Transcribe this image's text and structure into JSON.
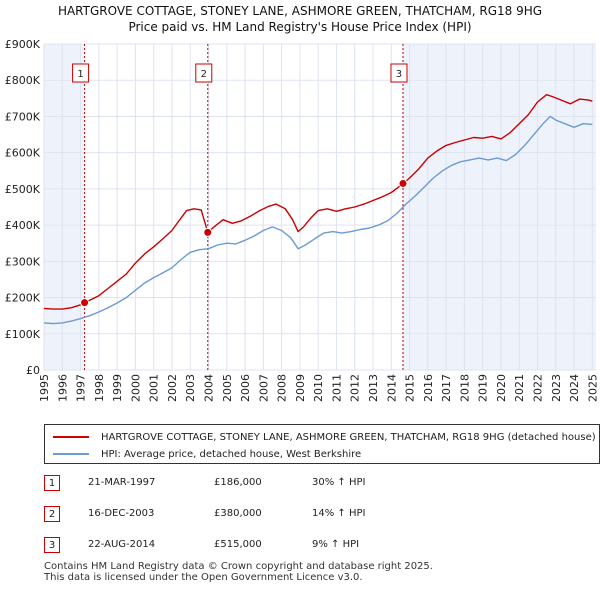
{
  "chart_data": {
    "type": "line",
    "title": "HARTGROVE COTTAGE, STONEY LANE, ASHMORE GREEN, THATCHAM, RG18 9HG",
    "subtitle": "Price paid vs. HM Land Registry's House Price Index (HPI)",
    "y_ticks": [
      "£0",
      "£100K",
      "£200K",
      "£300K",
      "£400K",
      "£500K",
      "£600K",
      "£700K",
      "£800K",
      "£900K"
    ],
    "ylim": [
      0,
      900000
    ],
    "x_ticks": [
      "1995",
      "1996",
      "1997",
      "1998",
      "1999",
      "2000",
      "2001",
      "2002",
      "2003",
      "2004",
      "2005",
      "2006",
      "2007",
      "2008",
      "2009",
      "2010",
      "2011",
      "2012",
      "2013",
      "2014",
      "2015",
      "2016",
      "2017",
      "2018",
      "2019",
      "2020",
      "2021",
      "2022",
      "2023",
      "2024",
      "2025"
    ],
    "xlim": [
      1995.0,
      2025.2
    ],
    "series": [
      {
        "name": "HARTGROVE COTTAGE, STONEY LANE, ASHMORE GREEN, THATCHAM, RG18 9HG (detached house)",
        "color": "#cc0000",
        "points": [
          [
            1995.0,
            170000
          ],
          [
            1995.5,
            168000
          ],
          [
            1996.0,
            168000
          ],
          [
            1996.5,
            172000
          ],
          [
            1997.0,
            180000
          ],
          [
            1997.22,
            186000
          ],
          [
            1997.6,
            195000
          ],
          [
            1998.0,
            205000
          ],
          [
            1998.5,
            225000
          ],
          [
            1999.0,
            245000
          ],
          [
            1999.5,
            265000
          ],
          [
            2000.0,
            295000
          ],
          [
            2000.5,
            320000
          ],
          [
            2001.0,
            340000
          ],
          [
            2001.5,
            362000
          ],
          [
            2002.0,
            385000
          ],
          [
            2002.5,
            420000
          ],
          [
            2002.8,
            440000
          ],
          [
            2003.2,
            445000
          ],
          [
            2003.6,
            442000
          ],
          [
            2003.96,
            380000
          ],
          [
            2004.3,
            395000
          ],
          [
            2004.8,
            415000
          ],
          [
            2005.3,
            405000
          ],
          [
            2005.8,
            412000
          ],
          [
            2006.3,
            425000
          ],
          [
            2006.8,
            440000
          ],
          [
            2007.3,
            452000
          ],
          [
            2007.7,
            458000
          ],
          [
            2008.2,
            445000
          ],
          [
            2008.6,
            415000
          ],
          [
            2008.9,
            382000
          ],
          [
            2009.2,
            395000
          ],
          [
            2009.6,
            420000
          ],
          [
            2010.0,
            440000
          ],
          [
            2010.5,
            445000
          ],
          [
            2011.0,
            438000
          ],
          [
            2011.5,
            445000
          ],
          [
            2012.0,
            450000
          ],
          [
            2012.5,
            458000
          ],
          [
            2013.0,
            468000
          ],
          [
            2013.5,
            478000
          ],
          [
            2014.0,
            490000
          ],
          [
            2014.4,
            505000
          ],
          [
            2014.64,
            515000
          ],
          [
            2015.0,
            530000
          ],
          [
            2015.5,
            555000
          ],
          [
            2016.0,
            585000
          ],
          [
            2016.5,
            605000
          ],
          [
            2017.0,
            620000
          ],
          [
            2017.5,
            628000
          ],
          [
            2018.0,
            635000
          ],
          [
            2018.5,
            642000
          ],
          [
            2019.0,
            640000
          ],
          [
            2019.5,
            645000
          ],
          [
            2020.0,
            638000
          ],
          [
            2020.5,
            655000
          ],
          [
            2021.0,
            680000
          ],
          [
            2021.5,
            705000
          ],
          [
            2022.0,
            740000
          ],
          [
            2022.5,
            760000
          ],
          [
            2022.8,
            755000
          ],
          [
            2023.3,
            745000
          ],
          [
            2023.8,
            735000
          ],
          [
            2024.3,
            748000
          ],
          [
            2024.8,
            745000
          ],
          [
            2025.0,
            742000
          ]
        ]
      },
      {
        "name": "HPI: Average price, detached house, West Berkshire",
        "color": "#6b9bd2",
        "points": [
          [
            1995.0,
            130000
          ],
          [
            1995.5,
            128000
          ],
          [
            1996.0,
            130000
          ],
          [
            1996.5,
            135000
          ],
          [
            1997.0,
            142000
          ],
          [
            1997.5,
            150000
          ],
          [
            1998.0,
            160000
          ],
          [
            1998.5,
            172000
          ],
          [
            1999.0,
            185000
          ],
          [
            1999.5,
            200000
          ],
          [
            2000.0,
            220000
          ],
          [
            2000.5,
            240000
          ],
          [
            2001.0,
            255000
          ],
          [
            2001.5,
            268000
          ],
          [
            2002.0,
            282000
          ],
          [
            2002.5,
            305000
          ],
          [
            2003.0,
            325000
          ],
          [
            2003.5,
            332000
          ],
          [
            2004.0,
            335000
          ],
          [
            2004.5,
            345000
          ],
          [
            2005.0,
            350000
          ],
          [
            2005.5,
            348000
          ],
          [
            2006.0,
            358000
          ],
          [
            2006.5,
            370000
          ],
          [
            2007.0,
            385000
          ],
          [
            2007.5,
            395000
          ],
          [
            2008.0,
            385000
          ],
          [
            2008.5,
            365000
          ],
          [
            2008.9,
            335000
          ],
          [
            2009.3,
            345000
          ],
          [
            2009.8,
            362000
          ],
          [
            2010.3,
            378000
          ],
          [
            2010.8,
            382000
          ],
          [
            2011.3,
            378000
          ],
          [
            2011.8,
            382000
          ],
          [
            2012.3,
            388000
          ],
          [
            2012.8,
            392000
          ],
          [
            2013.3,
            400000
          ],
          [
            2013.8,
            412000
          ],
          [
            2014.3,
            432000
          ],
          [
            2014.8,
            458000
          ],
          [
            2015.3,
            480000
          ],
          [
            2015.8,
            505000
          ],
          [
            2016.3,
            530000
          ],
          [
            2016.8,
            550000
          ],
          [
            2017.3,
            565000
          ],
          [
            2017.8,
            575000
          ],
          [
            2018.3,
            580000
          ],
          [
            2018.8,
            585000
          ],
          [
            2019.3,
            580000
          ],
          [
            2019.8,
            585000
          ],
          [
            2020.3,
            578000
          ],
          [
            2020.8,
            595000
          ],
          [
            2021.3,
            620000
          ],
          [
            2021.8,
            650000
          ],
          [
            2022.3,
            680000
          ],
          [
            2022.7,
            700000
          ],
          [
            2023.0,
            690000
          ],
          [
            2023.5,
            680000
          ],
          [
            2024.0,
            670000
          ],
          [
            2024.5,
            680000
          ],
          [
            2025.0,
            678000
          ]
        ]
      }
    ],
    "sales": [
      {
        "label": "1",
        "date": "21-MAR-1997",
        "year": 1997.22,
        "price": 186000,
        "price_text": "£186,000",
        "hpi": "30% ↑ HPI"
      },
      {
        "label": "2",
        "date": "16-DEC-2003",
        "year": 2003.96,
        "price": 380000,
        "price_text": "£380,000",
        "hpi": "14% ↑ HPI"
      },
      {
        "label": "3",
        "date": "22-AUG-2014",
        "year": 2014.64,
        "price": 515000,
        "price_text": "£515,000",
        "hpi": "9% ↑ HPI"
      }
    ],
    "legend": [
      "HARTGROVE COTTAGE, STONEY LANE, ASHMORE GREEN, THATCHAM, RG18 9HG (detached house)",
      "HPI: Average price, detached house, West Berkshire"
    ],
    "footer": [
      "Contains HM Land Registry data © Crown copyright and database right 2025.",
      "This data is licensed under the Open Government Licence v3.0."
    ]
  }
}
